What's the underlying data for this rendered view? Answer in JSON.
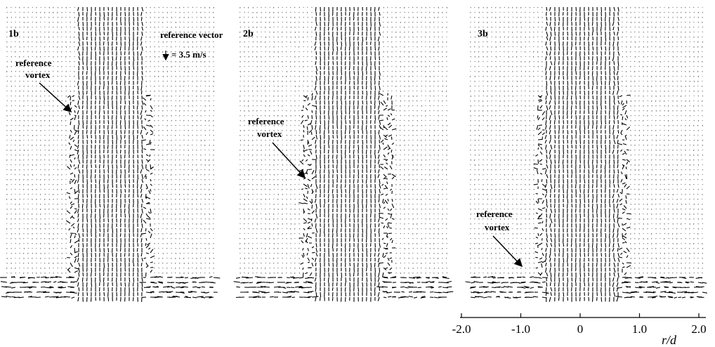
{
  "panels": [
    {
      "label": "1b",
      "vortex_label": [
        "reference",
        "vortex"
      ]
    },
    {
      "label": "2b",
      "vortex_label": [
        "reference",
        "vortex"
      ]
    },
    {
      "label": "3b",
      "vortex_label": [
        "reference",
        "vortex"
      ]
    }
  ],
  "reference_vector": {
    "title": "reference vector",
    "value_label": "= 3.5 m/s"
  },
  "scale": {
    "label": "r/d",
    "ticks": [
      {
        "value": -2,
        "label": "-2.0"
      },
      {
        "value": -1,
        "label": "-1.0"
      },
      0,
      {
        "value": 1,
        "label": "1.0"
      },
      {
        "value": 2,
        "label": "2.0"
      }
    ]
  }
}
